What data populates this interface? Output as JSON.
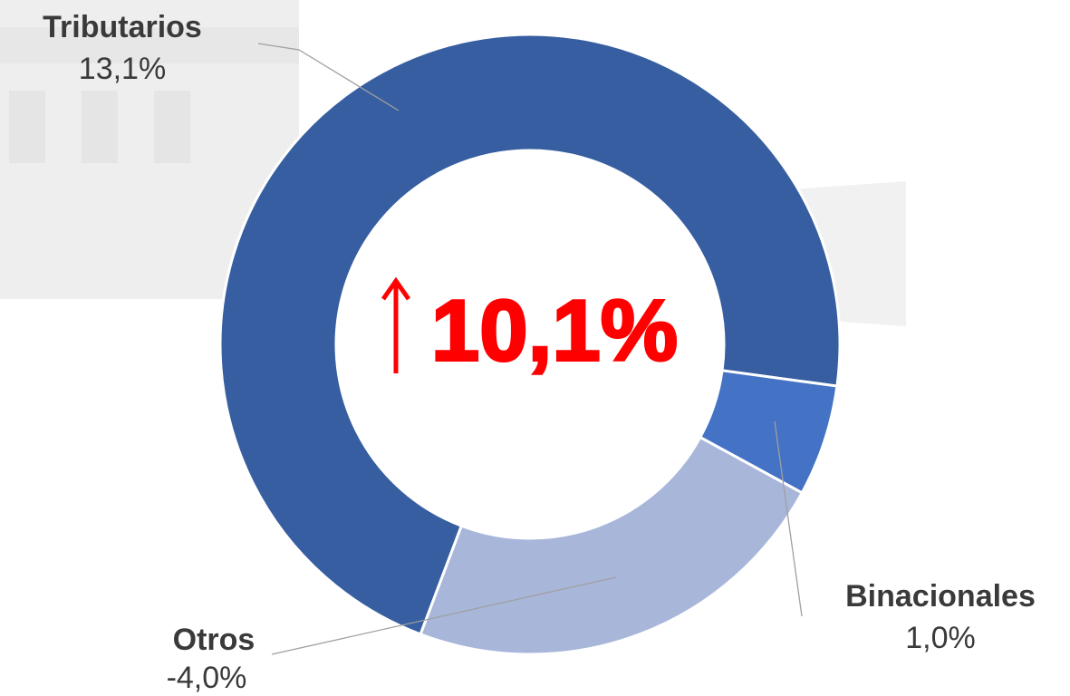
{
  "chart_data": {
    "type": "donut",
    "categories": [
      "Tributarios",
      "Binacionales",
      "Otros"
    ],
    "values": [
      71.4,
      5.8,
      22.8
    ],
    "growth_labels": [
      "13,1%",
      "1,0%",
      "-4,0%"
    ],
    "colors": [
      "#365ea0",
      "#4472c4",
      "#a8b6da"
    ],
    "start_angle": 200.7,
    "center_label": "10,1%"
  }
}
